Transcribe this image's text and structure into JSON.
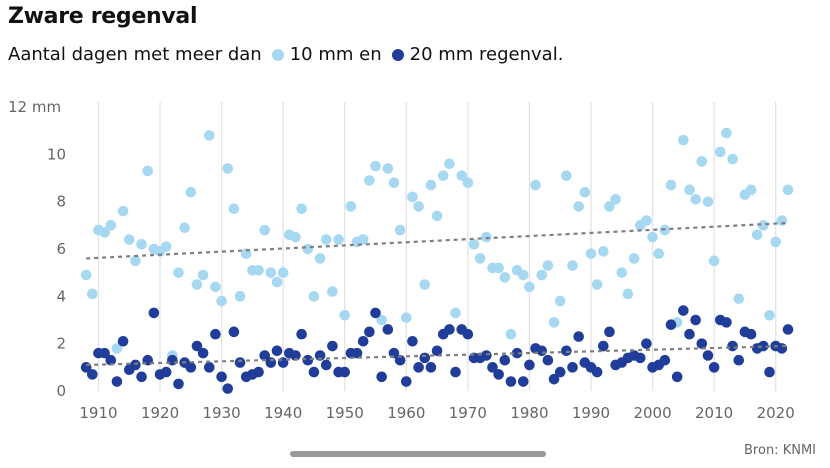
{
  "title": "Zware regenval",
  "subtitle": {
    "lead": "Aantal dagen met meer dan",
    "series1_text": "10 mm en",
    "series2_text": "20 mm regenval."
  },
  "source": "Bron: KNMI",
  "colors": {
    "light": "#a6d8f1",
    "dark": "#1f3d99",
    "trend": "#7f7f7f",
    "grid": "#e3e3e3"
  },
  "chart_data": {
    "type": "scatter",
    "title": "Zware regenval",
    "ylabel": "",
    "xlim": [
      1907,
      2022
    ],
    "ylim": [
      0,
      12
    ],
    "xticks": [
      "1910",
      "1920",
      "1930",
      "1940",
      "1950",
      "1960",
      "1970",
      "1980",
      "1990",
      "2000",
      "2010",
      "2020"
    ],
    "yticks": [
      "0",
      "2",
      "4",
      "6",
      "8",
      "10",
      "12 mm"
    ],
    "grid": "vertical",
    "series": [
      {
        "name": "10 mm",
        "color": "#a6d8f1",
        "trend": [
          5.6,
          7.1
        ],
        "points": [
          [
            1908,
            4.9
          ],
          [
            1909,
            4.1
          ],
          [
            1910,
            6.8
          ],
          [
            1911,
            6.7
          ],
          [
            1912,
            7.0
          ],
          [
            1913,
            1.8
          ],
          [
            1914,
            7.6
          ],
          [
            1915,
            6.4
          ],
          [
            1916,
            5.5
          ],
          [
            1917,
            6.2
          ],
          [
            1918,
            9.3
          ],
          [
            1919,
            6.0
          ],
          [
            1920,
            5.9
          ],
          [
            1921,
            6.1
          ],
          [
            1922,
            1.5
          ],
          [
            1923,
            5.0
          ],
          [
            1924,
            6.9
          ],
          [
            1925,
            8.4
          ],
          [
            1926,
            4.5
          ],
          [
            1927,
            4.9
          ],
          [
            1928,
            10.8
          ],
          [
            1929,
            4.4
          ],
          [
            1930,
            3.8
          ],
          [
            1931,
            9.4
          ],
          [
            1932,
            7.7
          ],
          [
            1933,
            4.0
          ],
          [
            1934,
            5.8
          ],
          [
            1935,
            5.1
          ],
          [
            1936,
            5.1
          ],
          [
            1937,
            6.8
          ],
          [
            1938,
            5.0
          ],
          [
            1939,
            4.6
          ],
          [
            1940,
            5.0
          ],
          [
            1941,
            6.6
          ],
          [
            1942,
            6.5
          ],
          [
            1943,
            7.7
          ],
          [
            1944,
            6.0
          ],
          [
            1945,
            4.0
          ],
          [
            1946,
            5.6
          ],
          [
            1947,
            6.4
          ],
          [
            1948,
            4.2
          ],
          [
            1949,
            6.4
          ],
          [
            1950,
            3.2
          ],
          [
            1951,
            7.8
          ],
          [
            1952,
            6.3
          ],
          [
            1953,
            6.4
          ],
          [
            1954,
            8.9
          ],
          [
            1955,
            9.5
          ],
          [
            1956,
            3.0
          ],
          [
            1957,
            9.4
          ],
          [
            1958,
            8.8
          ],
          [
            1959,
            6.8
          ],
          [
            1960,
            3.1
          ],
          [
            1961,
            8.2
          ],
          [
            1962,
            7.8
          ],
          [
            1963,
            4.5
          ],
          [
            1964,
            8.7
          ],
          [
            1965,
            7.4
          ],
          [
            1966,
            9.1
          ],
          [
            1967,
            9.6
          ],
          [
            1968,
            3.3
          ],
          [
            1969,
            9.1
          ],
          [
            1970,
            8.8
          ],
          [
            1971,
            6.2
          ],
          [
            1972,
            5.6
          ],
          [
            1973,
            6.5
          ],
          [
            1974,
            5.2
          ],
          [
            1975,
            5.2
          ],
          [
            1976,
            4.8
          ],
          [
            1977,
            2.4
          ],
          [
            1978,
            5.1
          ],
          [
            1979,
            4.9
          ],
          [
            1980,
            4.4
          ],
          [
            1981,
            8.7
          ],
          [
            1982,
            4.9
          ],
          [
            1983,
            5.3
          ],
          [
            1984,
            2.9
          ],
          [
            1985,
            3.8
          ],
          [
            1986,
            9.1
          ],
          [
            1987,
            5.3
          ],
          [
            1988,
            7.8
          ],
          [
            1989,
            8.4
          ],
          [
            1990,
            5.8
          ],
          [
            1991,
            4.5
          ],
          [
            1992,
            5.9
          ],
          [
            1993,
            7.8
          ],
          [
            1994,
            8.1
          ],
          [
            1995,
            5.0
          ],
          [
            1996,
            4.1
          ],
          [
            1997,
            5.6
          ],
          [
            1998,
            7.0
          ],
          [
            1999,
            7.2
          ],
          [
            2000,
            6.5
          ],
          [
            2001,
            5.8
          ],
          [
            2002,
            6.8
          ],
          [
            2003,
            8.7
          ],
          [
            2004,
            2.9
          ],
          [
            2005,
            10.6
          ],
          [
            2006,
            8.5
          ],
          [
            2007,
            8.1
          ],
          [
            2008,
            9.7
          ],
          [
            2009,
            8.0
          ],
          [
            2010,
            5.5
          ],
          [
            2011,
            10.1
          ],
          [
            2012,
            10.9
          ],
          [
            2013,
            9.8
          ],
          [
            2014,
            3.9
          ],
          [
            2015,
            8.3
          ],
          [
            2016,
            8.5
          ],
          [
            2017,
            6.6
          ],
          [
            2018,
            7.0
          ],
          [
            2019,
            3.2
          ],
          [
            2020,
            6.3
          ],
          [
            2021,
            7.2
          ],
          [
            2022,
            8.5
          ]
        ]
      },
      {
        "name": "20 mm",
        "color": "#1f3d99",
        "trend": [
          1.1,
          1.9
        ],
        "points": [
          [
            1908,
            1.0
          ],
          [
            1909,
            0.7
          ],
          [
            1910,
            1.6
          ],
          [
            1911,
            1.6
          ],
          [
            1912,
            1.3
          ],
          [
            1913,
            0.4
          ],
          [
            1914,
            2.1
          ],
          [
            1915,
            0.9
          ],
          [
            1916,
            1.1
          ],
          [
            1917,
            0.6
          ],
          [
            1918,
            1.3
          ],
          [
            1919,
            3.3
          ],
          [
            1920,
            0.7
          ],
          [
            1921,
            0.8
          ],
          [
            1922,
            1.3
          ],
          [
            1923,
            0.3
          ],
          [
            1924,
            1.2
          ],
          [
            1925,
            1.0
          ],
          [
            1926,
            1.9
          ],
          [
            1927,
            1.6
          ],
          [
            1928,
            1.0
          ],
          [
            1929,
            2.4
          ],
          [
            1930,
            0.6
          ],
          [
            1931,
            0.1
          ],
          [
            1932,
            2.5
          ],
          [
            1933,
            1.2
          ],
          [
            1934,
            0.6
          ],
          [
            1935,
            0.7
          ],
          [
            1936,
            0.8
          ],
          [
            1937,
            1.5
          ],
          [
            1938,
            1.2
          ],
          [
            1939,
            1.7
          ],
          [
            1940,
            1.2
          ],
          [
            1941,
            1.6
          ],
          [
            1942,
            1.5
          ],
          [
            1943,
            2.4
          ],
          [
            1944,
            1.3
          ],
          [
            1945,
            0.8
          ],
          [
            1946,
            1.5
          ],
          [
            1947,
            1.1
          ],
          [
            1948,
            1.9
          ],
          [
            1949,
            0.8
          ],
          [
            1950,
            0.8
          ],
          [
            1951,
            1.6
          ],
          [
            1952,
            1.6
          ],
          [
            1953,
            2.1
          ],
          [
            1954,
            2.5
          ],
          [
            1955,
            3.3
          ],
          [
            1956,
            0.6
          ],
          [
            1957,
            2.6
          ],
          [
            1958,
            1.6
          ],
          [
            1959,
            1.3
          ],
          [
            1960,
            0.4
          ],
          [
            1961,
            2.1
          ],
          [
            1962,
            1.0
          ],
          [
            1963,
            1.4
          ],
          [
            1964,
            1.0
          ],
          [
            1965,
            1.7
          ],
          [
            1966,
            2.4
          ],
          [
            1967,
            2.6
          ],
          [
            1968,
            0.8
          ],
          [
            1969,
            2.6
          ],
          [
            1970,
            2.4
          ],
          [
            1971,
            1.4
          ],
          [
            1972,
            1.4
          ],
          [
            1973,
            1.5
          ],
          [
            1974,
            1.0
          ],
          [
            1975,
            0.7
          ],
          [
            1976,
            1.3
          ],
          [
            1977,
            0.4
          ],
          [
            1978,
            1.6
          ],
          [
            1979,
            0.4
          ],
          [
            1980,
            1.1
          ],
          [
            1981,
            1.8
          ],
          [
            1982,
            1.7
          ],
          [
            1983,
            1.3
          ],
          [
            1984,
            0.5
          ],
          [
            1985,
            0.8
          ],
          [
            1986,
            1.7
          ],
          [
            1987,
            1.0
          ],
          [
            1988,
            2.3
          ],
          [
            1989,
            1.2
          ],
          [
            1990,
            1.0
          ],
          [
            1991,
            0.8
          ],
          [
            1992,
            1.9
          ],
          [
            1993,
            2.5
          ],
          [
            1994,
            1.1
          ],
          [
            1995,
            1.2
          ],
          [
            1996,
            1.4
          ],
          [
            1997,
            1.5
          ],
          [
            1998,
            1.4
          ],
          [
            1999,
            2.0
          ],
          [
            2000,
            1.0
          ],
          [
            2001,
            1.1
          ],
          [
            2002,
            1.3
          ],
          [
            2003,
            2.8
          ],
          [
            2004,
            0.6
          ],
          [
            2005,
            3.4
          ],
          [
            2006,
            2.4
          ],
          [
            2007,
            3.0
          ],
          [
            2008,
            2.0
          ],
          [
            2009,
            1.5
          ],
          [
            2010,
            1.0
          ],
          [
            2011,
            3.0
          ],
          [
            2012,
            2.9
          ],
          [
            2013,
            1.9
          ],
          [
            2014,
            1.3
          ],
          [
            2015,
            2.5
          ],
          [
            2016,
            2.4
          ],
          [
            2017,
            1.8
          ],
          [
            2018,
            1.9
          ],
          [
            2019,
            0.8
          ],
          [
            2020,
            1.9
          ],
          [
            2021,
            1.8
          ],
          [
            2022,
            2.6
          ]
        ]
      }
    ]
  }
}
